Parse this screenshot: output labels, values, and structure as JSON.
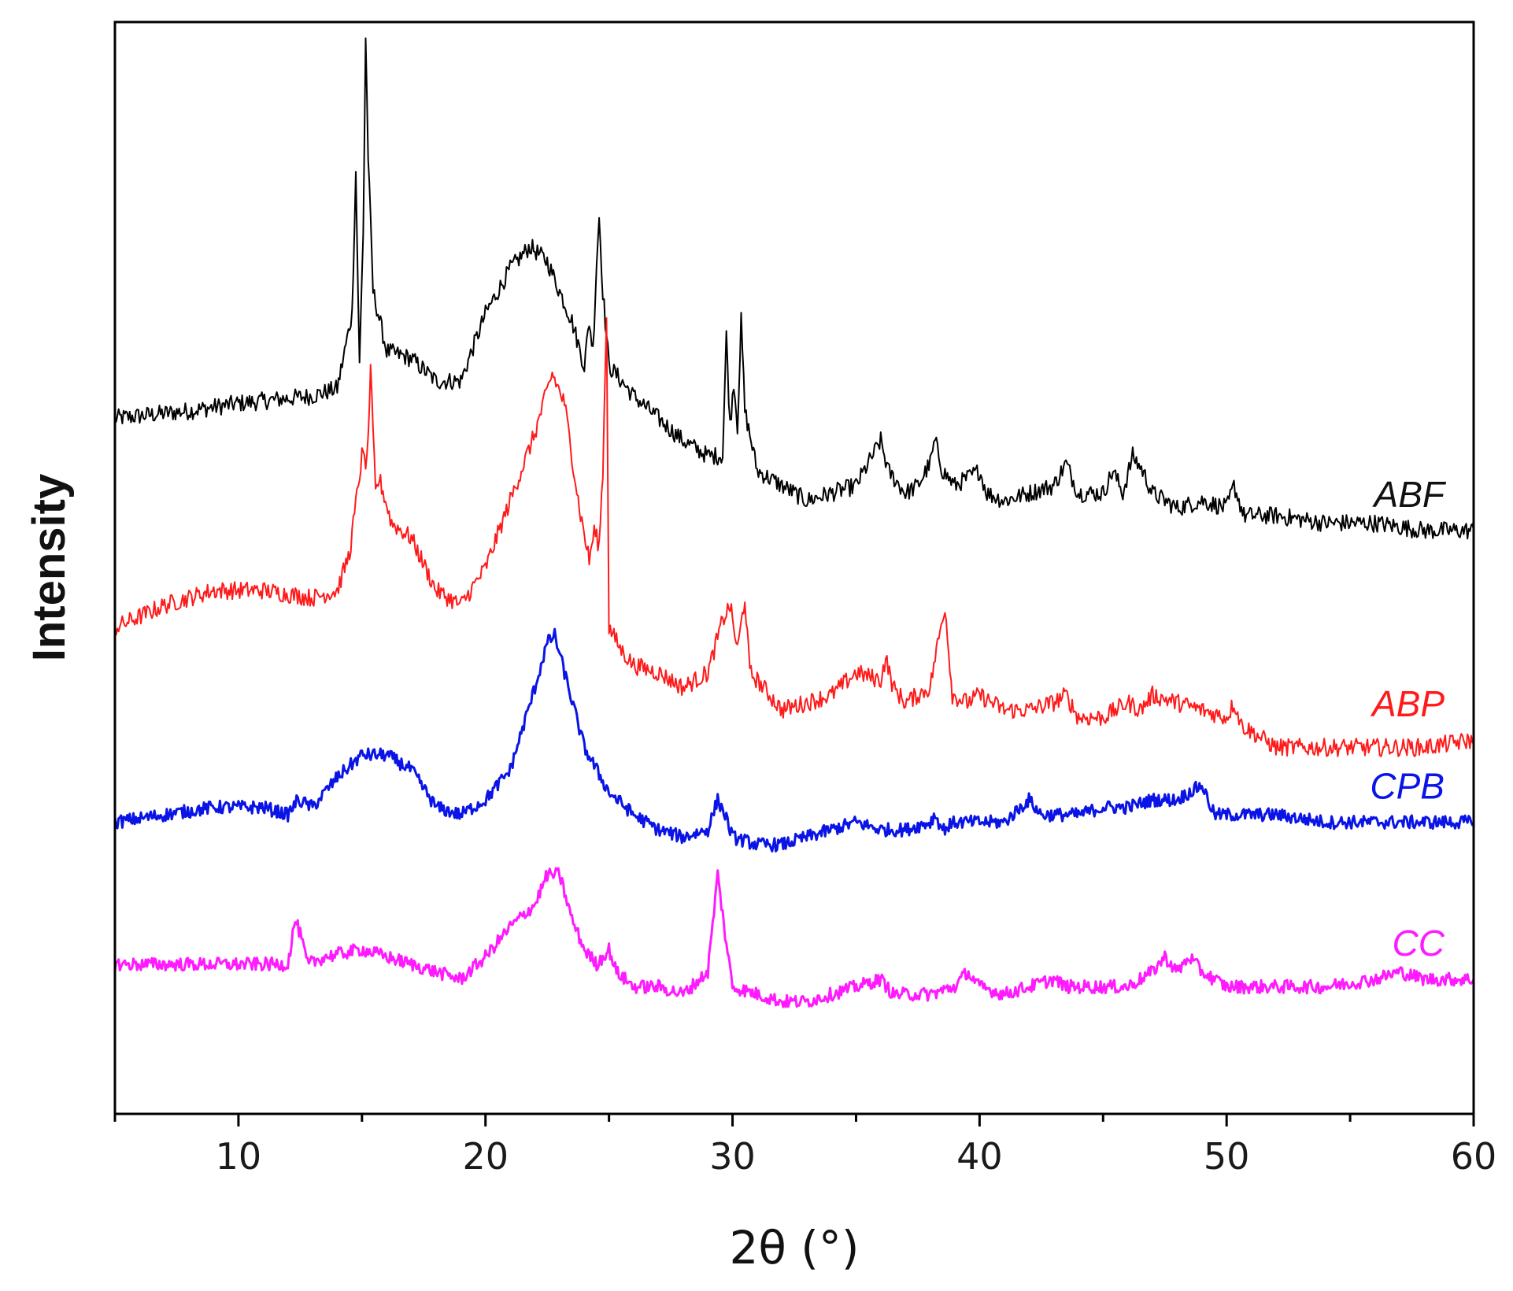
{
  "chart_data": {
    "type": "line",
    "title": "",
    "xlabel": "2θ (°)",
    "ylabel": "Intensity",
    "xlim": [
      5,
      60
    ],
    "xticks": [
      10,
      20,
      30,
      40,
      50,
      60
    ],
    "yticks_shown": false,
    "grid": false,
    "legend": "inline labels at right end of each trace",
    "series": [
      {
        "name": "ABF",
        "color": "#000000",
        "offset": 0.76,
        "points": [
          [
            5,
            0.01
          ],
          [
            8,
            0.02
          ],
          [
            10,
            0.03
          ],
          [
            13,
            0.04
          ],
          [
            14,
            0.05
          ],
          [
            14.6,
            0.15
          ],
          [
            14.75,
            0.34
          ],
          [
            14.9,
            0.08
          ],
          [
            15.05,
            0.26
          ],
          [
            15.15,
            0.52
          ],
          [
            15.25,
            0.36
          ],
          [
            15.45,
            0.18
          ],
          [
            16,
            0.1
          ],
          [
            17,
            0.09
          ],
          [
            18,
            0.06
          ],
          [
            19,
            0.06
          ],
          [
            20,
            0.15
          ],
          [
            21,
            0.21
          ],
          [
            21.8,
            0.24
          ],
          [
            22.5,
            0.22
          ],
          [
            23.5,
            0.14
          ],
          [
            24,
            0.08
          ],
          [
            24.2,
            0.14
          ],
          [
            24.35,
            0.1
          ],
          [
            24.5,
            0.22
          ],
          [
            24.6,
            0.28
          ],
          [
            24.75,
            0.18
          ],
          [
            25,
            0.08
          ],
          [
            26,
            0.04
          ],
          [
            27,
            0.01
          ],
          [
            28,
            -0.02
          ],
          [
            29,
            -0.04
          ],
          [
            29.6,
            -0.04
          ],
          [
            29.75,
            0.12
          ],
          [
            29.9,
            0.0
          ],
          [
            30.05,
            0.06
          ],
          [
            30.2,
            0.0
          ],
          [
            30.35,
            0.14
          ],
          [
            30.5,
            0.02
          ],
          [
            31,
            -0.06
          ],
          [
            32,
            -0.08
          ],
          [
            33,
            -0.1
          ],
          [
            34,
            -0.09
          ],
          [
            35,
            -0.08
          ],
          [
            35.5,
            -0.05
          ],
          [
            36,
            -0.02
          ],
          [
            36.3,
            -0.06
          ],
          [
            37,
            -0.09
          ],
          [
            37.5,
            -0.08
          ],
          [
            38,
            -0.05
          ],
          [
            38.2,
            -0.02
          ],
          [
            38.5,
            -0.06
          ],
          [
            39,
            -0.08
          ],
          [
            40,
            -0.06
          ],
          [
            40.3,
            -0.09
          ],
          [
            41,
            -0.1
          ],
          [
            42,
            -0.09
          ],
          [
            43,
            -0.08
          ],
          [
            43.5,
            -0.05
          ],
          [
            44,
            -0.09
          ],
          [
            45,
            -0.09
          ],
          [
            45.4,
            -0.06
          ],
          [
            45.8,
            -0.09
          ],
          [
            46.2,
            -0.04
          ],
          [
            46.6,
            -0.06
          ],
          [
            47,
            -0.09
          ],
          [
            48,
            -0.11
          ],
          [
            49,
            -0.1
          ],
          [
            50,
            -0.11
          ],
          [
            50.3,
            -0.08
          ],
          [
            50.7,
            -0.12
          ],
          [
            52,
            -0.12
          ],
          [
            54,
            -0.13
          ],
          [
            56,
            -0.13
          ],
          [
            58,
            -0.14
          ],
          [
            60,
            -0.14
          ]
        ]
      },
      {
        "name": "ABP",
        "color": "#ff1a1a",
        "offset": 0.49,
        "points": [
          [
            5,
            0.0
          ],
          [
            7,
            0.03
          ],
          [
            9,
            0.05
          ],
          [
            11,
            0.05
          ],
          [
            13,
            0.04
          ],
          [
            14,
            0.05
          ],
          [
            14.5,
            0.1
          ],
          [
            15,
            0.23
          ],
          [
            15.2,
            0.22
          ],
          [
            15.35,
            0.34
          ],
          [
            15.55,
            0.18
          ],
          [
            15.7,
            0.2
          ],
          [
            16.2,
            0.14
          ],
          [
            17,
            0.12
          ],
          [
            18,
            0.05
          ],
          [
            19,
            0.03
          ],
          [
            20,
            0.08
          ],
          [
            21,
            0.17
          ],
          [
            22,
            0.26
          ],
          [
            22.7,
            0.34
          ],
          [
            23.2,
            0.3
          ],
          [
            23.8,
            0.16
          ],
          [
            24.2,
            0.09
          ],
          [
            24.4,
            0.13
          ],
          [
            24.6,
            0.11
          ],
          [
            24.75,
            0.21
          ],
          [
            24.9,
            0.42
          ],
          [
            25,
            0.0
          ],
          [
            25.5,
            -0.03
          ],
          [
            26,
            -0.05
          ],
          [
            27,
            -0.06
          ],
          [
            28,
            -0.08
          ],
          [
            29,
            -0.06
          ],
          [
            29.6,
            0.01
          ],
          [
            29.9,
            0.03
          ],
          [
            30.2,
            -0.03
          ],
          [
            30.5,
            0.04
          ],
          [
            30.7,
            -0.06
          ],
          [
            31,
            -0.07
          ],
          [
            32,
            -0.11
          ],
          [
            33,
            -0.1
          ],
          [
            34,
            -0.09
          ],
          [
            35,
            -0.06
          ],
          [
            36,
            -0.07
          ],
          [
            36.2,
            -0.04
          ],
          [
            36.5,
            -0.08
          ],
          [
            37,
            -0.1
          ],
          [
            38,
            -0.08
          ],
          [
            38.2,
            -0.04
          ],
          [
            38.6,
            0.03
          ],
          [
            38.9,
            -0.09
          ],
          [
            39.5,
            -0.1
          ],
          [
            40,
            -0.09
          ],
          [
            41,
            -0.11
          ],
          [
            42,
            -0.11
          ],
          [
            43,
            -0.1
          ],
          [
            43.5,
            -0.09
          ],
          [
            44,
            -0.12
          ],
          [
            45,
            -0.12
          ],
          [
            46,
            -0.1
          ],
          [
            46.5,
            -0.11
          ],
          [
            47,
            -0.09
          ],
          [
            48,
            -0.1
          ],
          [
            49,
            -0.11
          ],
          [
            50,
            -0.12
          ],
          [
            50.3,
            -0.1
          ],
          [
            50.6,
            -0.13
          ],
          [
            52,
            -0.16
          ],
          [
            54,
            -0.16
          ],
          [
            56,
            -0.16
          ],
          [
            58,
            -0.16
          ],
          [
            60,
            -0.15
          ]
        ]
      },
      {
        "name": "CPB",
        "color": "#0a14e6",
        "offset": 0.23,
        "points": [
          [
            5,
            0.0
          ],
          [
            7,
            0.01
          ],
          [
            9,
            0.02
          ],
          [
            11,
            0.02
          ],
          [
            12,
            0.01
          ],
          [
            12.4,
            0.03
          ],
          [
            13,
            0.02
          ],
          [
            14,
            0.06
          ],
          [
            15,
            0.09
          ],
          [
            16,
            0.09
          ],
          [
            17,
            0.07
          ],
          [
            18,
            0.02
          ],
          [
            19,
            0.01
          ],
          [
            20,
            0.03
          ],
          [
            21,
            0.07
          ],
          [
            22,
            0.18
          ],
          [
            22.5,
            0.24
          ],
          [
            22.8,
            0.25
          ],
          [
            23.2,
            0.2
          ],
          [
            24,
            0.1
          ],
          [
            25,
            0.04
          ],
          [
            26,
            0.01
          ],
          [
            27,
            -0.01
          ],
          [
            28,
            -0.02
          ],
          [
            29,
            -0.01
          ],
          [
            29.4,
            0.03
          ],
          [
            29.7,
            0.01
          ],
          [
            30,
            -0.02
          ],
          [
            31,
            -0.03
          ],
          [
            32,
            -0.03
          ],
          [
            33,
            -0.02
          ],
          [
            34,
            -0.01
          ],
          [
            35,
            0.0
          ],
          [
            36,
            -0.01
          ],
          [
            37,
            -0.01
          ],
          [
            38,
            0.0
          ],
          [
            38.2,
            0.01
          ],
          [
            38.5,
            -0.01
          ],
          [
            39,
            0.0
          ],
          [
            40,
            0.0
          ],
          [
            41,
            0.0
          ],
          [
            42,
            0.03
          ],
          [
            42.5,
            0.01
          ],
          [
            43,
            0.01
          ],
          [
            44,
            0.01
          ],
          [
            45,
            0.02
          ],
          [
            46,
            0.02
          ],
          [
            47,
            0.03
          ],
          [
            48,
            0.03
          ],
          [
            49,
            0.05
          ],
          [
            49.5,
            0.01
          ],
          [
            50,
            0.01
          ],
          [
            52,
            0.01
          ],
          [
            54,
            0.0
          ],
          [
            56,
            0.0
          ],
          [
            58,
            0.0
          ],
          [
            60,
            0.0
          ]
        ]
      },
      {
        "name": "CC",
        "color": "#ff1aff",
        "offset": 0.0,
        "points": [
          [
            5,
            0.04
          ],
          [
            7,
            0.04
          ],
          [
            9,
            0.04
          ],
          [
            11,
            0.04
          ],
          [
            12,
            0.04
          ],
          [
            12.3,
            0.1
          ],
          [
            12.5,
            0.08
          ],
          [
            12.8,
            0.04
          ],
          [
            13.5,
            0.05
          ],
          [
            15,
            0.06
          ],
          [
            16,
            0.05
          ],
          [
            17,
            0.04
          ],
          [
            18,
            0.03
          ],
          [
            19,
            0.02
          ],
          [
            20,
            0.05
          ],
          [
            21,
            0.09
          ],
          [
            22,
            0.12
          ],
          [
            22.5,
            0.16
          ],
          [
            23,
            0.16
          ],
          [
            23.5,
            0.1
          ],
          [
            24,
            0.06
          ],
          [
            24.5,
            0.04
          ],
          [
            25,
            0.06
          ],
          [
            25.3,
            0.03
          ],
          [
            26,
            0.01
          ],
          [
            27,
            0.01
          ],
          [
            28,
            0.0
          ],
          [
            29,
            0.03
          ],
          [
            29.4,
            0.16
          ],
          [
            29.7,
            0.08
          ],
          [
            30,
            0.01
          ],
          [
            31,
            0.0
          ],
          [
            32,
            -0.01
          ],
          [
            33,
            -0.01
          ],
          [
            34,
            0.0
          ],
          [
            35,
            0.01
          ],
          [
            36,
            0.02
          ],
          [
            36.5,
            0.0
          ],
          [
            37,
            0.0
          ],
          [
            38,
            0.0
          ],
          [
            39,
            0.01
          ],
          [
            39.5,
            0.03
          ],
          [
            40,
            0.01
          ],
          [
            41,
            0.0
          ],
          [
            42,
            0.01
          ],
          [
            43,
            0.02
          ],
          [
            43.5,
            0.01
          ],
          [
            44,
            0.01
          ],
          [
            45,
            0.01
          ],
          [
            46,
            0.01
          ],
          [
            47,
            0.03
          ],
          [
            47.5,
            0.05
          ],
          [
            48,
            0.03
          ],
          [
            48.5,
            0.05
          ],
          [
            49,
            0.03
          ],
          [
            49.5,
            0.02
          ],
          [
            50,
            0.01
          ],
          [
            52,
            0.01
          ],
          [
            54,
            0.01
          ],
          [
            56,
            0.02
          ],
          [
            57,
            0.03
          ],
          [
            58,
            0.02
          ],
          [
            60,
            0.02
          ]
        ]
      }
    ]
  }
}
